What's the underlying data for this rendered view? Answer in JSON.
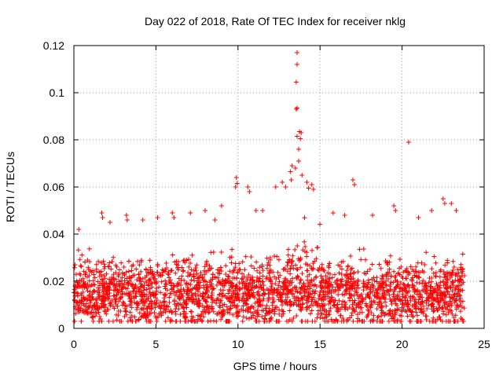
{
  "chart_data": {
    "type": "scatter",
    "title": "Day 022 of 2018, Rate Of TEC Index for receiver nklg",
    "xlabel": "GPS time / hours",
    "ylabel": "ROTI / TECUs",
    "xlim": [
      0,
      25
    ],
    "ylim": [
      0,
      0.12
    ],
    "x_ticks": [
      0,
      5,
      10,
      15,
      20,
      25
    ],
    "x_tick_labels": [
      "0",
      "5",
      "10",
      "15",
      "20",
      "25"
    ],
    "y_ticks": [
      0,
      0.02,
      0.04,
      0.06,
      0.08,
      0.1,
      0.12
    ],
    "y_tick_labels": [
      "0",
      "0.02",
      "0.04",
      "0.06",
      "0.08",
      "0.1",
      "0.12"
    ],
    "grid": true,
    "marker": "+",
    "color": "#ff0000",
    "data_x_range": [
      0,
      23.8
    ],
    "series": [
      {
        "name": "ROTI",
        "x": [
          13.6,
          13.6,
          13.55,
          13.6,
          13.55,
          13.6,
          13.75,
          13.8,
          13.85,
          13.7,
          13.7,
          13.5,
          13.2,
          13.25,
          13.3,
          12.9,
          13.9,
          14.2,
          14.3,
          9.9,
          9.95,
          9.85,
          10.6,
          10.7,
          12.3,
          12.7,
          17.0,
          17.1,
          14.5,
          14.6,
          20.4,
          1.7,
          1.75,
          2.2,
          3.2,
          3.25,
          6.0,
          6.1,
          7.1,
          8.0,
          9.0,
          11.1,
          11.5,
          19.5,
          19.6,
          22.5,
          22.6,
          23.0,
          23.3,
          0.3,
          4.2,
          5.1,
          8.6,
          15.8,
          16.5,
          18.2,
          21.0,
          21.8
        ],
        "y": [
          0.117,
          0.112,
          0.1045,
          0.0935,
          0.093,
          0.0815,
          0.0835,
          0.0805,
          0.083,
          0.076,
          0.071,
          0.068,
          0.0665,
          0.063,
          0.069,
          0.06,
          0.065,
          0.062,
          0.0595,
          0.064,
          0.0615,
          0.06,
          0.06,
          0.058,
          0.06,
          0.062,
          0.063,
          0.061,
          0.061,
          0.059,
          0.079,
          0.049,
          0.047,
          0.045,
          0.048,
          0.046,
          0.049,
          0.047,
          0.049,
          0.05,
          0.052,
          0.05,
          0.05,
          0.052,
          0.05,
          0.055,
          0.053,
          0.053,
          0.05,
          0.042,
          0.046,
          0.047,
          0.046,
          0.049,
          0.048,
          0.048,
          0.047,
          0.05
        ]
      }
    ],
    "dense_band": {
      "description": "dense cloud of points spanning the full time range",
      "x_start": 0,
      "x_end": 23.8,
      "typical_y_min": 0.003,
      "typical_y_max": 0.045,
      "typical_center": 0.015
    }
  }
}
